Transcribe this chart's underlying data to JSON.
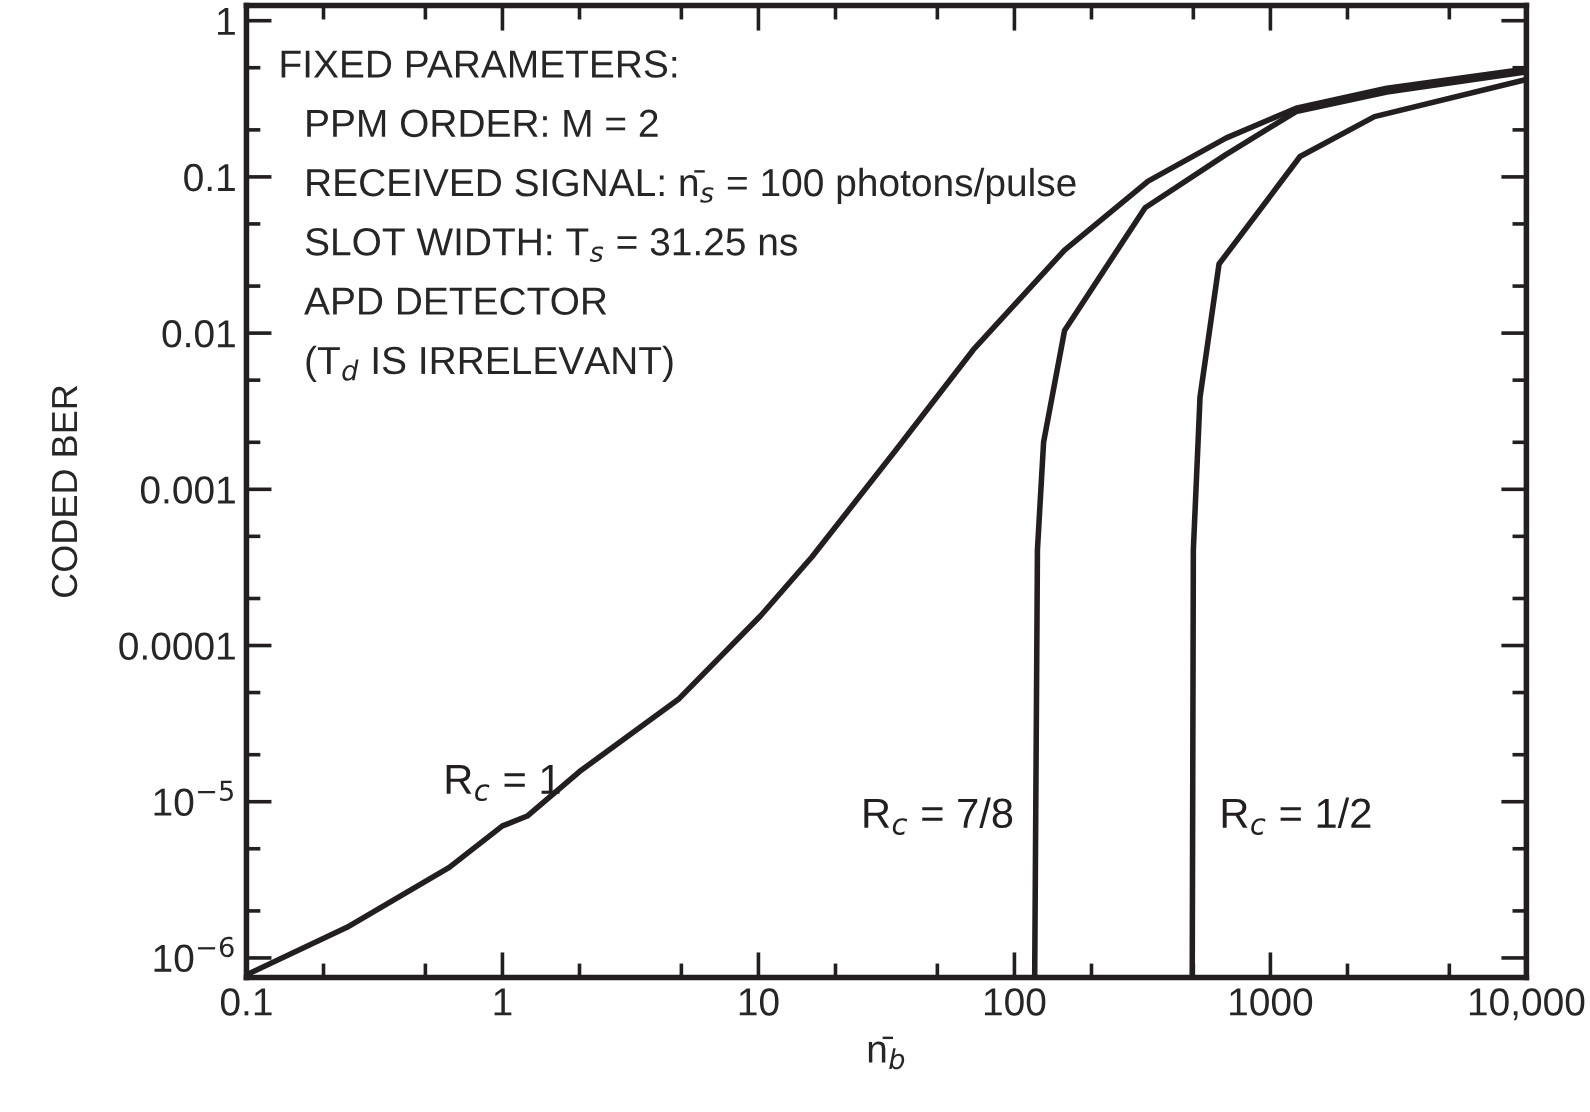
{
  "chart_data": {
    "type": "line",
    "xlabel": "n̄$_{b}$",
    "ylabel": "CODED BER",
    "log": "xy",
    "xlim": [
      0.1,
      10000
    ],
    "ylim": [
      7.5e-07,
      1.25
    ],
    "xticks": [
      0.1,
      1,
      10,
      100,
      1000,
      {
        "value": 10000,
        "label": "10,000"
      }
    ],
    "yticks": [
      1,
      0.1,
      0.01,
      0.001,
      0.0001,
      {
        "value": 1e-05,
        "label": "10$^{−5}$"
      },
      {
        "value": 1e-06,
        "label": "10$^{−6}$"
      }
    ],
    "grid": false,
    "legend": false,
    "marker": "none",
    "line_style": "solid",
    "series": [
      {
        "name": "R$_{c}$ = 1",
        "color": "#231f20",
        "x": [
          0.1,
          0.247,
          0.62,
          1.0,
          1.25,
          2.0,
          4.9,
          10.2,
          16.2,
          34.5,
          69,
          157,
          333,
          670,
          1260,
          2850,
          10000
        ],
        "values": [
          7.8e-07,
          1.57e-06,
          3.8e-06,
          7e-06,
          8.1e-06,
          1.56e-05,
          4.57e-05,
          0.000155,
          0.00037,
          0.00179,
          0.0078,
          0.034,
          0.094,
          0.177,
          0.275,
          0.37,
          0.49
        ]
      },
      {
        "name": "R$_{c}$ = 7/8",
        "color": "#231f20",
        "x": [
          120,
          123,
          130,
          157,
          324,
          670,
          1260,
          2850,
          10000
        ],
        "values": [
          7.5e-07,
          0.00041,
          0.002,
          0.0104,
          0.0635,
          0.139,
          0.262,
          0.35,
          0.47
        ]
      },
      {
        "name": "R$_{c}$ = 1/2",
        "color": "#231f20",
        "x": [
          495,
          500,
          531,
          630,
          1306,
          2550,
          10000
        ],
        "values": [
          7.5e-07,
          0.00041,
          0.0039,
          0.0277,
          0.135,
          0.243,
          0.42
        ]
      }
    ],
    "annotations": [
      "FIXED PARAMETERS:",
      "PPM ORDER: M = 2",
      "RECEIVED SIGNAL: n̄$_{s}$ = 100 photons/pulse",
      "SLOT WIDTH: T$_{s}$ = 31.25 ns",
      "APD DETECTOR",
      "(T$_{d}$ IS IRRELEVANT)"
    ]
  }
}
